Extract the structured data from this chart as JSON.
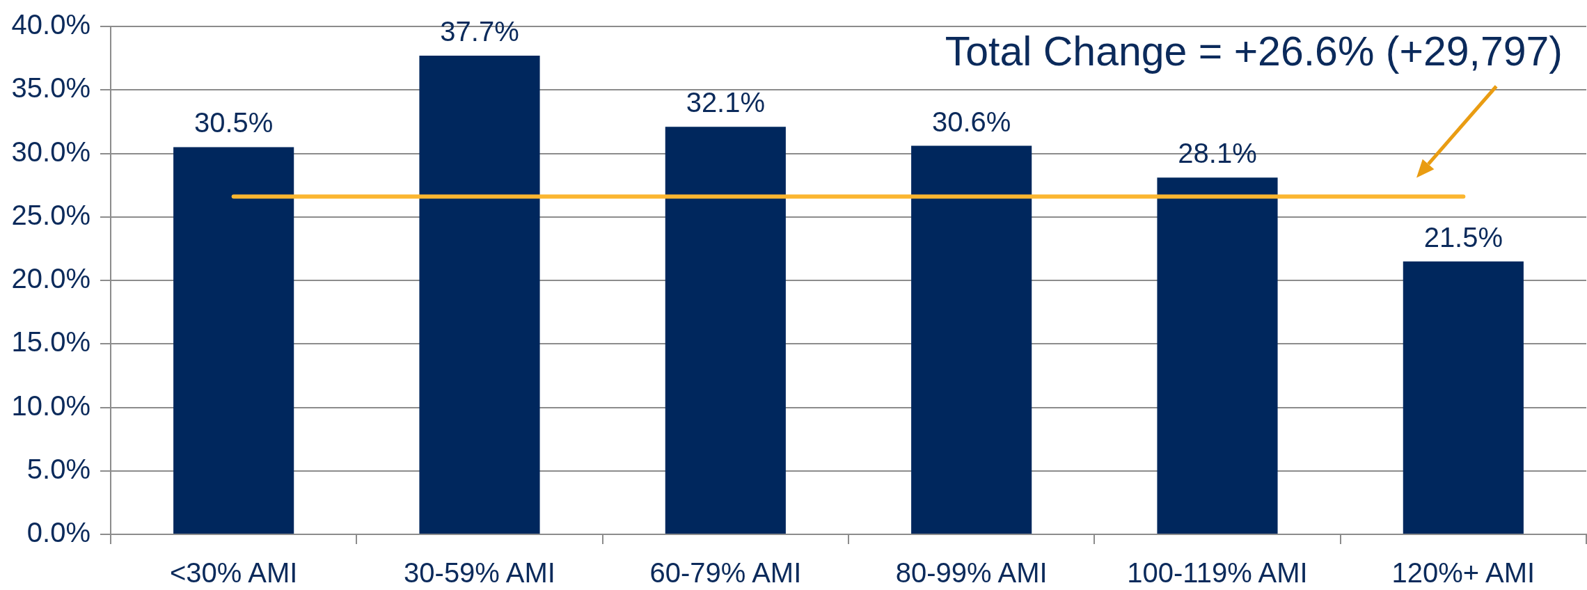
{
  "chart_data": {
    "type": "bar",
    "categories": [
      "<30% AMI",
      "30-59% AMI",
      "60-79% AMI",
      "80-99% AMI",
      "100-119% AMI",
      "120%+ AMI"
    ],
    "values": [
      30.5,
      37.7,
      32.1,
      30.6,
      28.1,
      21.5
    ],
    "value_labels": [
      "30.5%",
      "37.7%",
      "32.1%",
      "30.6%",
      "28.1%",
      "21.5%"
    ],
    "color": "#00275d",
    "ylim": [
      0,
      40
    ],
    "yticks": [
      {
        "value": 0,
        "label": "0.0%"
      },
      {
        "value": 5,
        "label": "5.0%"
      },
      {
        "value": 10,
        "label": "10.0%"
      },
      {
        "value": 15,
        "label": "15.0%"
      },
      {
        "value": 20,
        "label": "20.0%"
      },
      {
        "value": 25,
        "label": "25.0%"
      },
      {
        "value": 30,
        "label": "30.0%"
      },
      {
        "value": 35,
        "label": "35.0%"
      },
      {
        "value": 40,
        "label": "40.0%"
      }
    ],
    "grid": "y",
    "ref_lines": [
      {
        "axis": "y",
        "value": 26.6,
        "color": "#fbb630"
      }
    ],
    "annotations": [
      "Total Change = +26.6% (+29,797)"
    ]
  }
}
